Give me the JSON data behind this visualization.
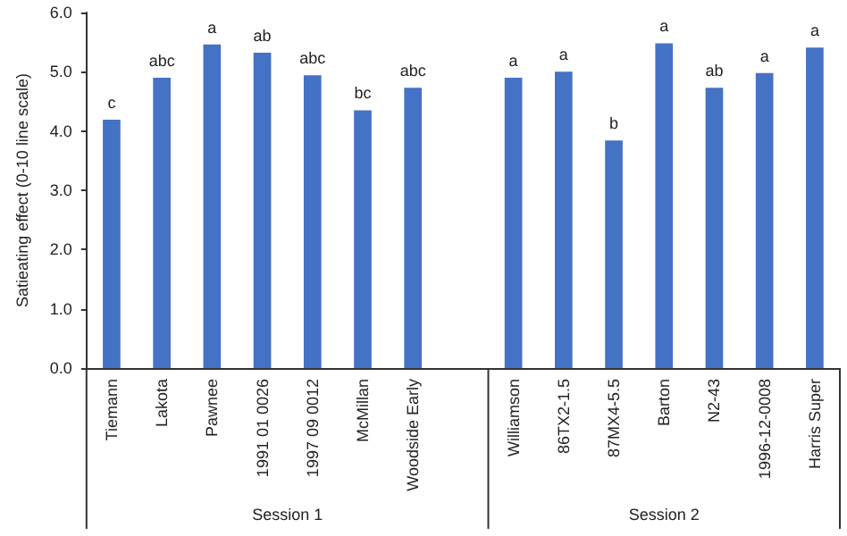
{
  "chart_data": {
    "type": "bar",
    "ylabel": "Satieating effect (0-10 line scale)",
    "categories": [
      "Tiemann",
      "Lakota",
      "Pawnee",
      "1991 01 0026",
      "1997 09 0012",
      "McMillan",
      "Woodside Early",
      null,
      "Williamson",
      "86TX2-1.5",
      "87MX4-5.5",
      "Barton",
      "N2-43",
      "1996-12-0008",
      "Harris Super"
    ],
    "values": [
      4.19,
      4.9,
      5.46,
      5.32,
      4.94,
      4.35,
      4.73,
      null,
      4.9,
      5.0,
      3.84,
      5.48,
      4.73,
      4.98,
      5.41
    ],
    "value_labels": [
      "c",
      "abc",
      "a",
      "ab",
      "abc",
      "bc",
      "abc",
      null,
      "a",
      "a",
      "b",
      "a",
      "ab",
      "a",
      "a"
    ],
    "color": "#4472c4",
    "ylim": [
      0,
      6
    ],
    "yticks": [
      {
        "value": 0,
        "label": "0.0"
      },
      {
        "value": 1,
        "label": "1.0"
      },
      {
        "value": 2,
        "label": "2.0"
      },
      {
        "value": 3,
        "label": "3.0"
      },
      {
        "value": 4,
        "label": "4.0"
      },
      {
        "value": 5,
        "label": "5.0"
      },
      {
        "value": 6,
        "label": "6.0"
      }
    ],
    "annotations": [
      "Session 1",
      "Session 2"
    ],
    "grid": false
  }
}
